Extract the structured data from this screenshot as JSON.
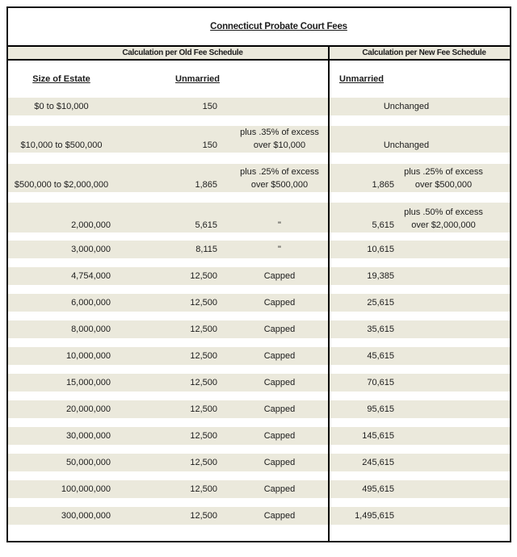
{
  "title": "Connecticut Probate Court Fees",
  "old_section": {
    "header": "Calculation per Old Fee Schedule",
    "estate_label": "Size of Estate",
    "unmarried_label": "Unmarried"
  },
  "new_section": {
    "header": "Calculation per New Fee Schedule",
    "unmarried_label": "Unmarried"
  },
  "colors": {
    "band": "#ebe9dc",
    "border": "#000000"
  },
  "rows": [
    {
      "estate": "$0 to $10,000",
      "old_fee": "150",
      "new_merged": "Unchanged"
    },
    {
      "estate": "$10,000 to $500,000",
      "old_fee": "150",
      "old_note1": "plus .35% of excess",
      "old_note2": "over $10,000",
      "new_merged": "Unchanged"
    },
    {
      "estate": "$500,000 to $2,000,000",
      "old_fee": "1,865",
      "old_note1": "plus .25% of excess",
      "old_note2": "over $500,000",
      "new_fee": "1,865",
      "new_note1": "plus .25% of excess",
      "new_note2": "over $500,000"
    },
    {
      "estate": "2,000,000",
      "old_fee": "5,615",
      "old_note": "\"",
      "new_fee": "5,615",
      "new_note1": "plus .50% of excess",
      "new_note2": "over $2,000,000"
    },
    {
      "estate": "3,000,000",
      "old_fee": "8,115",
      "old_note": "\"",
      "new_fee": "10,615"
    },
    {
      "estate": "4,754,000",
      "old_fee": "12,500",
      "old_note": "Capped",
      "new_fee": "19,385"
    },
    {
      "estate": "6,000,000",
      "old_fee": "12,500",
      "old_note": "Capped",
      "new_fee": "25,615"
    },
    {
      "estate": "8,000,000",
      "old_fee": "12,500",
      "old_note": "Capped",
      "new_fee": "35,615"
    },
    {
      "estate": "10,000,000",
      "old_fee": "12,500",
      "old_note": "Capped",
      "new_fee": "45,615"
    },
    {
      "estate": "15,000,000",
      "old_fee": "12,500",
      "old_note": "Capped",
      "new_fee": "70,615"
    },
    {
      "estate": "20,000,000",
      "old_fee": "12,500",
      "old_note": "Capped",
      "new_fee": "95,615"
    },
    {
      "estate": "30,000,000",
      "old_fee": "12,500",
      "old_note": "Capped",
      "new_fee": "145,615"
    },
    {
      "estate": "50,000,000",
      "old_fee": "12,500",
      "old_note": "Capped",
      "new_fee": "245,615"
    },
    {
      "estate": "100,000,000",
      "old_fee": "12,500",
      "old_note": "Capped",
      "new_fee": "495,615"
    },
    {
      "estate": "300,000,000",
      "old_fee": "12,500",
      "old_note": "Capped",
      "new_fee": "1,495,615"
    }
  ]
}
